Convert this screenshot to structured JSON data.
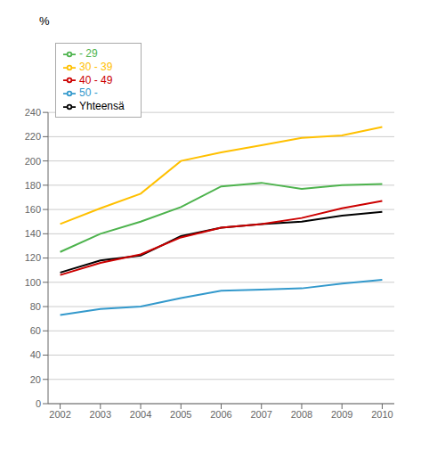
{
  "chart_data": {
    "type": "line",
    "ylabel": "%",
    "x": [
      2002,
      2003,
      2004,
      2005,
      2006,
      2007,
      2008,
      2009,
      2010
    ],
    "series": [
      {
        "name": "Yhteensä",
        "color": "#000000",
        "values": [
          108,
          118,
          122,
          138,
          145,
          148,
          150,
          155,
          158
        ]
      },
      {
        "name": "- 29",
        "color": "#4db34d",
        "values": [
          125,
          140,
          150,
          162,
          179,
          182,
          177,
          180,
          181
        ]
      },
      {
        "name": "30 - 39",
        "color": "#ffc000",
        "values": [
          148,
          161,
          173,
          200,
          207,
          213,
          219,
          221,
          228
        ]
      },
      {
        "name": "40 - 49",
        "color": "#cc0000",
        "values": [
          106,
          116,
          123,
          137,
          145,
          148,
          153,
          161,
          167
        ]
      },
      {
        "name": "50 -",
        "color": "#3399cc",
        "values": [
          73,
          78,
          80,
          87,
          93,
          94,
          95,
          99,
          102
        ]
      }
    ],
    "xlim": [
      2001.7,
      2010.3
    ],
    "xticks": [
      2002,
      2003,
      2004,
      2005,
      2006,
      2007,
      2008,
      2009,
      2010
    ],
    "ylim": [
      0,
      240
    ],
    "yticks": [
      0,
      20,
      40,
      60,
      80,
      100,
      120,
      140,
      160,
      180,
      200,
      220,
      240
    ],
    "grid": true,
    "legend": "upper left"
  }
}
